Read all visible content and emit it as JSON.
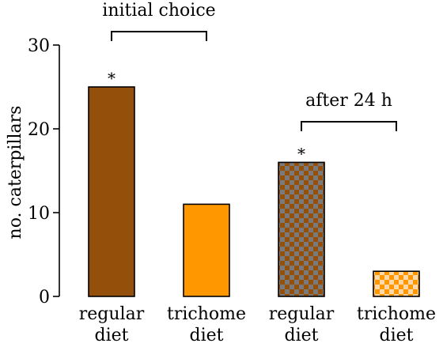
{
  "chart_data": {
    "type": "bar",
    "ylabel": "no. caterpillars",
    "ylim": [
      0,
      30
    ],
    "yticks": [
      0,
      10,
      20,
      30
    ],
    "categories": [
      [
        "regular",
        "diet"
      ],
      [
        "trichome",
        "diet"
      ],
      [
        "regular",
        "diet"
      ],
      [
        "trichome",
        "diet"
      ]
    ],
    "values": [
      25,
      11,
      16,
      3
    ],
    "bars": [
      {
        "fill": "#94500a",
        "pattern": "solid",
        "asterisk": true
      },
      {
        "fill": "#ff9800",
        "pattern": "solid",
        "asterisk": false
      },
      {
        "fill": "#94500a",
        "pattern": "checker",
        "checker_alt": "#7a7a7a",
        "asterisk": true
      },
      {
        "fill": "#ff9800",
        "pattern": "checker",
        "checker_alt": "#ffd9a8",
        "asterisk": false
      }
    ],
    "significance_marker": "*",
    "annotations": [
      {
        "text": "initial choice",
        "bars": [
          0,
          1
        ]
      },
      {
        "text": "after 24 h",
        "bars": [
          2,
          3
        ]
      }
    ]
  }
}
